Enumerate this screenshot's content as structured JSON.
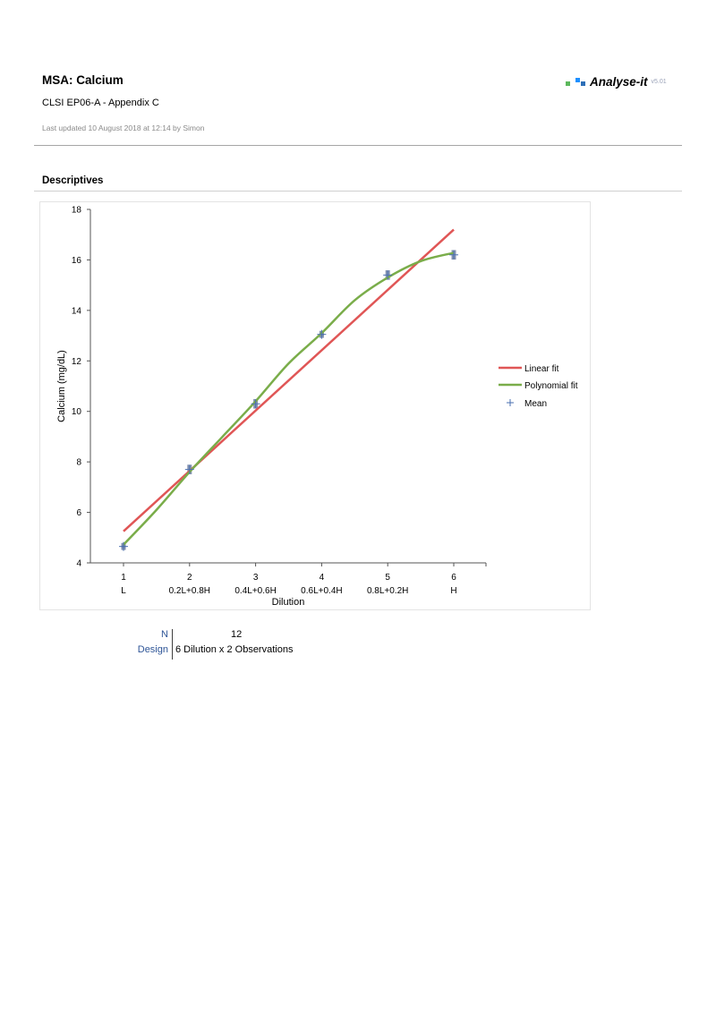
{
  "header": {
    "title": "MSA: Calcium",
    "subtitle": "CLSI EP06-A - Appendix C",
    "updated": "Last updated 10 August 2018 at 12:14 by Simon",
    "logo_text": "Analyse-it",
    "logo_version": "v5.01"
  },
  "section": {
    "title": "Descriptives"
  },
  "colors": {
    "linear": "#e05656",
    "poly": "#7aad4a",
    "mean": "#4a6fb0",
    "axis": "#555555"
  },
  "chart_data": {
    "type": "line",
    "xlabel": "Dilution",
    "ylabel": "Calcium (mg/dL)",
    "xlim": [
      0.5,
      6.5
    ],
    "ylim": [
      4,
      18
    ],
    "y_ticks": [
      4,
      6,
      8,
      10,
      12,
      14,
      16,
      18
    ],
    "x_ticks": [
      1,
      2,
      3,
      4,
      5,
      6
    ],
    "x_tick_sublabels": [
      "L",
      "0.2L+0.8H",
      "0.4L+0.6H",
      "0.6L+0.4H",
      "0.8L+0.2H",
      "H"
    ],
    "legend_placement": "right",
    "series": [
      {
        "name": "Linear fit",
        "kind": "line",
        "x": [
          1,
          6
        ],
        "y": [
          5.25,
          17.2
        ]
      },
      {
        "name": "Polynomial fit",
        "kind": "curve",
        "x": [
          1,
          1.5,
          2,
          2.5,
          3,
          3.5,
          4,
          4.5,
          5,
          5.5,
          6
        ],
        "y": [
          4.72,
          6.1,
          7.6,
          9.0,
          10.4,
          11.9,
          13.1,
          14.4,
          15.3,
          15.95,
          16.28
        ]
      },
      {
        "name": "Mean",
        "kind": "points",
        "x": [
          1,
          2,
          3,
          4,
          5,
          6
        ],
        "y": [
          4.65,
          7.7,
          10.3,
          13.05,
          15.4,
          16.2
        ]
      }
    ],
    "observations": {
      "x": [
        1,
        1,
        2,
        2,
        3,
        3,
        4,
        4,
        5,
        5,
        6,
        6
      ],
      "y": [
        4.6,
        4.7,
        7.6,
        7.8,
        10.2,
        10.4,
        13.0,
        13.1,
        15.3,
        15.5,
        16.1,
        16.3
      ]
    }
  },
  "stats": {
    "n_label": "N",
    "n_value": "12",
    "design_label": "Design",
    "design_value": "6 Dilution x 2 Observations"
  }
}
